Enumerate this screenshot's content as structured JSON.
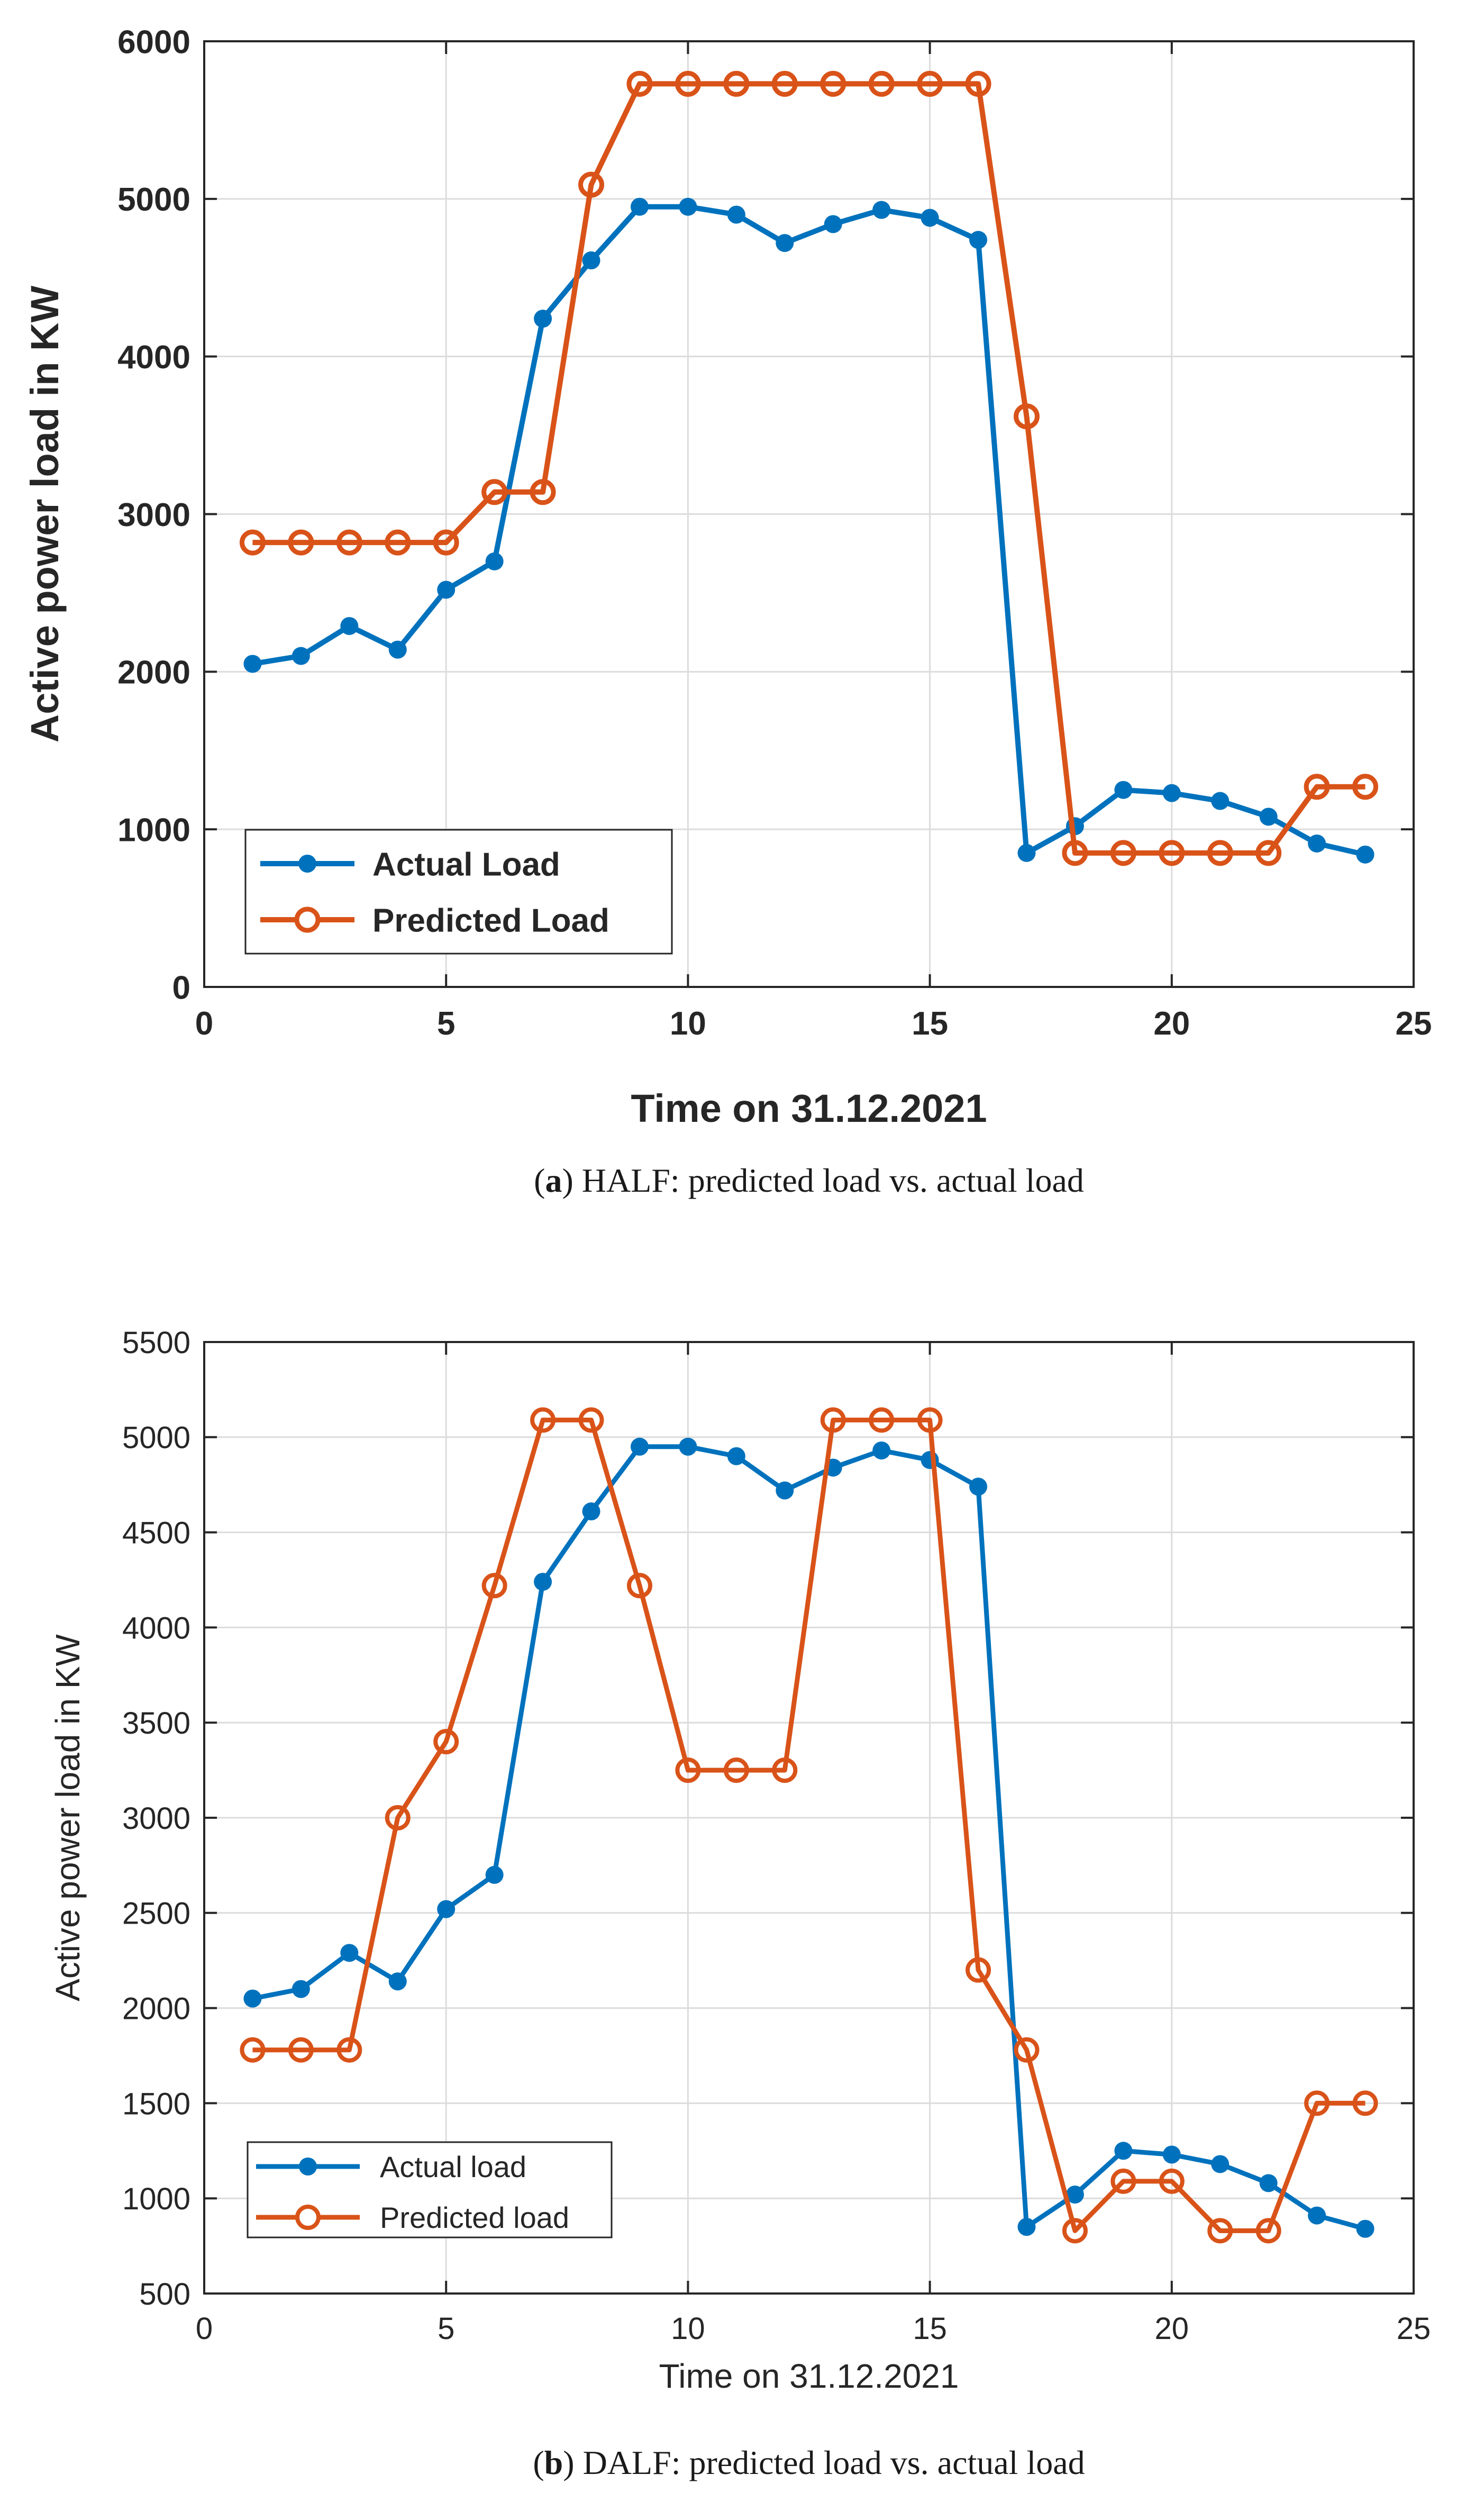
{
  "chart_data": [
    {
      "panel": "a",
      "type": "line",
      "xlabel": "Time on 31.12.2021",
      "ylabel": "Active power load in KW",
      "xlim": [
        0,
        25
      ],
      "ylim": [
        0,
        6000
      ],
      "xticks": [
        0,
        5,
        10,
        15,
        20,
        25
      ],
      "yticks": [
        0,
        1000,
        2000,
        3000,
        4000,
        5000,
        6000
      ],
      "grid": true,
      "legend_position": "bottom-left",
      "caption_label": "(a)",
      "caption_text": " HALF: predicted load vs. actual load",
      "x": [
        1,
        2,
        3,
        4,
        5,
        6,
        7,
        8,
        9,
        10,
        11,
        12,
        13,
        14,
        15,
        16,
        17,
        18,
        19,
        20,
        21,
        22,
        23,
        24
      ],
      "series": [
        {
          "name": "Actual Load",
          "color": "#0072BD",
          "marker": "filled-circle",
          "values": [
            2050,
            2100,
            2290,
            2140,
            2520,
            2700,
            4240,
            4610,
            4950,
            4950,
            4900,
            4720,
            4840,
            4930,
            4880,
            4740,
            850,
            1020,
            1250,
            1230,
            1180,
            1080,
            910,
            840
          ]
        },
        {
          "name": "Predicted Load",
          "color": "#D95319",
          "marker": "open-circle",
          "values": [
            2820,
            2820,
            2820,
            2820,
            2820,
            3140,
            3140,
            5090,
            5730,
            5730,
            5730,
            5730,
            5730,
            5730,
            5730,
            5730,
            3620,
            850,
            850,
            850,
            850,
            850,
            1270,
            1270
          ]
        }
      ]
    },
    {
      "panel": "b",
      "type": "line",
      "xlabel": "Time on 31.12.2021",
      "ylabel": "Active power load in KW",
      "xlim": [
        0,
        25
      ],
      "ylim": [
        500,
        5500
      ],
      "xticks": [
        0,
        5,
        10,
        15,
        20,
        25
      ],
      "yticks": [
        500,
        1000,
        1500,
        2000,
        2500,
        3000,
        3500,
        4000,
        4500,
        5000,
        5500
      ],
      "grid": true,
      "legend_position": "bottom-left",
      "caption_label": "(b)",
      "caption_text": " DALF: predicted load vs. actual load",
      "x": [
        1,
        2,
        3,
        4,
        5,
        6,
        7,
        8,
        9,
        10,
        11,
        12,
        13,
        14,
        15,
        16,
        17,
        18,
        19,
        20,
        21,
        22,
        23,
        24
      ],
      "series": [
        {
          "name": "Actual load",
          "color": "#0072BD",
          "marker": "filled-circle",
          "values": [
            2050,
            2100,
            2290,
            2140,
            2520,
            2700,
            4240,
            4610,
            4950,
            4950,
            4900,
            4720,
            4840,
            4930,
            4880,
            4740,
            850,
            1020,
            1250,
            1230,
            1180,
            1080,
            910,
            840
          ]
        },
        {
          "name": "Predicted load",
          "color": "#D95319",
          "marker": "open-circle",
          "values": [
            1780,
            1780,
            1780,
            3000,
            3400,
            4220,
            5090,
            5090,
            4220,
            3250,
            3250,
            3250,
            5090,
            5090,
            5090,
            2200,
            1780,
            830,
            1090,
            1090,
            830,
            830,
            1500,
            1500
          ]
        }
      ]
    }
  ]
}
